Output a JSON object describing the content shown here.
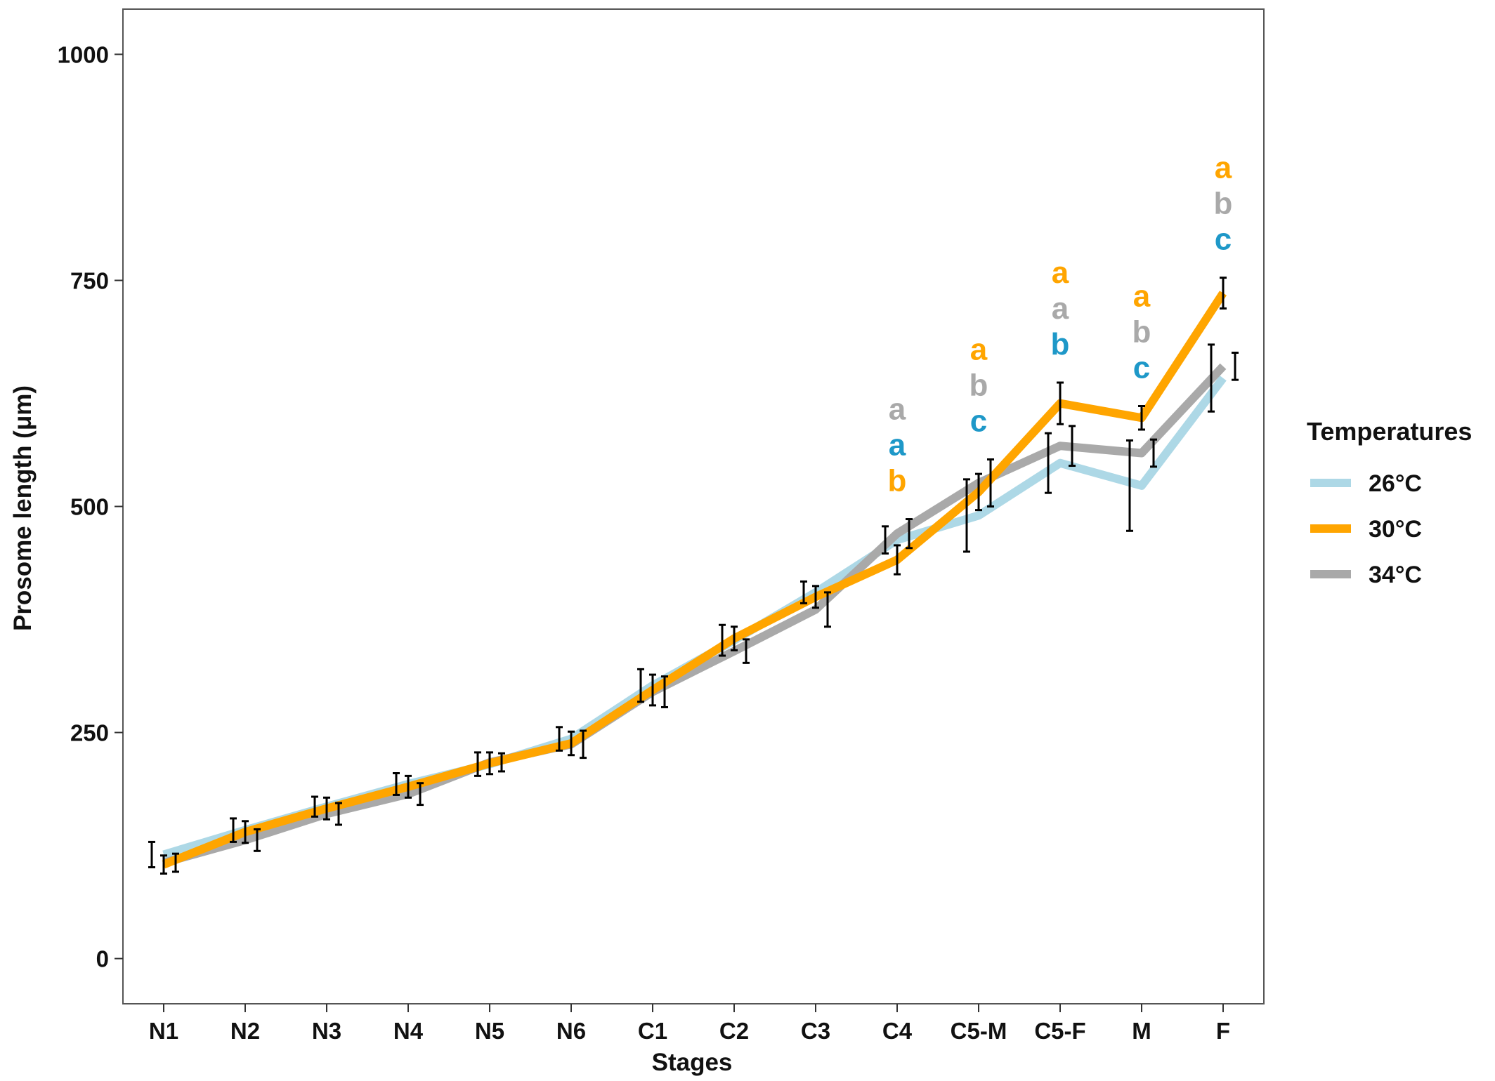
{
  "chart_data": {
    "type": "line",
    "title": "",
    "xlabel": "Stages",
    "ylabel": "Prosome length (μm)",
    "ylim": [
      -50,
      1050
    ],
    "yticks": [
      0,
      250,
      500,
      750,
      1000
    ],
    "categories": [
      "N1",
      "N2",
      "N3",
      "N4",
      "N5",
      "N6",
      "C1",
      "C2",
      "C3",
      "C4",
      "C5-M",
      "C5-F",
      "M",
      "F"
    ],
    "legend": {
      "title": "Temperatures",
      "position": "right"
    },
    "series": [
      {
        "name": "26°C",
        "color": "#add8e6",
        "values": [
          115,
          142,
          168,
          193,
          215,
          243,
          302,
          352,
          405,
          463,
          490,
          548,
          523,
          642
        ],
        "error": [
          14,
          13,
          11,
          12,
          13,
          13,
          18,
          17,
          12,
          15,
          40,
          33,
          50,
          37
        ]
      },
      {
        "name": "30°C",
        "color": "#ffa500",
        "values": [
          104,
          140,
          166,
          190,
          216,
          238,
          297,
          354,
          400,
          441,
          516,
          614,
          598,
          736
        ],
        "error": [
          10,
          12,
          12,
          12,
          12,
          13,
          17,
          13,
          12,
          16,
          20,
          23,
          13,
          17
        ]
      },
      {
        "name": "34°C",
        "color": "#a9a9a9",
        "values": [
          106,
          131,
          160,
          182,
          217,
          237,
          295,
          340,
          386,
          470,
          526,
          567,
          559,
          655
        ],
        "error": [
          10,
          12,
          12,
          12,
          10,
          15,
          17,
          13,
          19,
          16,
          26,
          22,
          15,
          15
        ]
      }
    ],
    "annotations": [
      {
        "category": "C4",
        "letters": [
          {
            "text": "a",
            "color": "#a9a9a9"
          },
          {
            "text": "a",
            "color": "#1e98c8"
          },
          {
            "text": "b",
            "color": "#ffa500"
          }
        ]
      },
      {
        "category": "C5-M",
        "letters": [
          {
            "text": "a",
            "color": "#ffa500"
          },
          {
            "text": "b",
            "color": "#a9a9a9"
          },
          {
            "text": "c",
            "color": "#1e98c8"
          }
        ]
      },
      {
        "category": "C5-F",
        "letters": [
          {
            "text": "a",
            "color": "#ffa500"
          },
          {
            "text": "a",
            "color": "#a9a9a9"
          },
          {
            "text": "b",
            "color": "#1e98c8"
          }
        ]
      },
      {
        "category": "M",
        "letters": [
          {
            "text": "a",
            "color": "#ffa500"
          },
          {
            "text": "b",
            "color": "#a9a9a9"
          },
          {
            "text": "c",
            "color": "#1e98c8"
          }
        ]
      },
      {
        "category": "F",
        "letters": [
          {
            "text": "a",
            "color": "#ffa500"
          },
          {
            "text": "b",
            "color": "#a9a9a9"
          },
          {
            "text": "c",
            "color": "#1e98c8"
          }
        ]
      }
    ]
  }
}
